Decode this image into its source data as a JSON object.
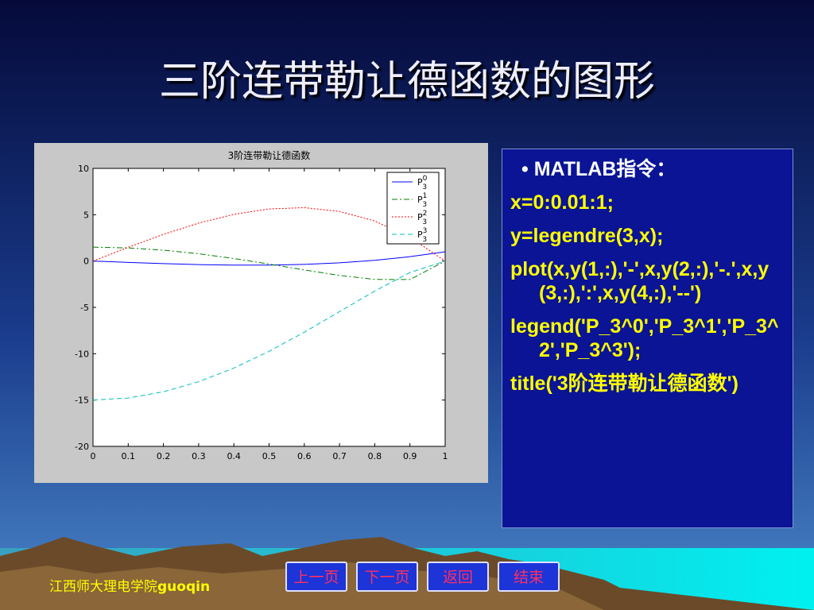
{
  "slide_title": "三阶连带勒让德函数的图形",
  "chart_data": {
    "type": "line",
    "title": "3阶连带勒让德函数",
    "x": [
      0,
      0.1,
      0.2,
      0.3,
      0.4,
      0.5,
      0.6,
      0.7,
      0.8,
      0.9,
      1
    ],
    "series": [
      {
        "name": "P_3^0",
        "color": "#0000ff",
        "style": "solid",
        "values": [
          0,
          -0.1475,
          -0.28,
          -0.3825,
          -0.44,
          -0.4375,
          -0.36,
          -0.1925,
          0.08,
          0.4725,
          1
        ]
      },
      {
        "name": "P_3^1",
        "color": "#008000",
        "style": "dashdot",
        "values": [
          1.5,
          1.418,
          1.176,
          0.787,
          0.275,
          -0.325,
          -0.96,
          -1.553,
          -1.98,
          -1.994,
          0
        ]
      },
      {
        "name": "P_3^2",
        "color": "#ff0000",
        "style": "dotted",
        "values": [
          0,
          1.485,
          2.88,
          4.095,
          5.04,
          5.625,
          5.76,
          5.355,
          4.32,
          2.565,
          0
        ]
      },
      {
        "name": "P_3^3",
        "color": "#00bfbf",
        "style": "dashed",
        "values": [
          -15,
          -14.78,
          -14.11,
          -13.02,
          -11.55,
          -9.74,
          -7.68,
          -5.46,
          -3.24,
          -1.24,
          0
        ]
      }
    ],
    "xlim": [
      0,
      1
    ],
    "xticks": [
      0,
      0.1,
      0.2,
      0.3,
      0.4,
      0.5,
      0.6,
      0.7,
      0.8,
      0.9,
      1
    ],
    "ylim": [
      -20,
      10
    ],
    "yticks": [
      -20,
      -15,
      -10,
      -5,
      0,
      5,
      10
    ],
    "grid": false,
    "legend": "northeast"
  },
  "code_panel": {
    "heading": "MATLAB指令：",
    "lines": [
      "x=0:0.01:1;",
      "y=legendre(3,x);",
      "plot(x,y(1,:),'-',x,y(2,:),'-.',x,y(3,:),':',x,y(4,:),'--')",
      "legend('P_3^0','P_3^1','P_3^2','P_3^3');",
      "title('3阶连带勒让德函数')"
    ]
  },
  "footer": "江西师大理电学院guoqin",
  "buttons": [
    "上一页",
    "下一页",
    "返回",
    "结束"
  ]
}
